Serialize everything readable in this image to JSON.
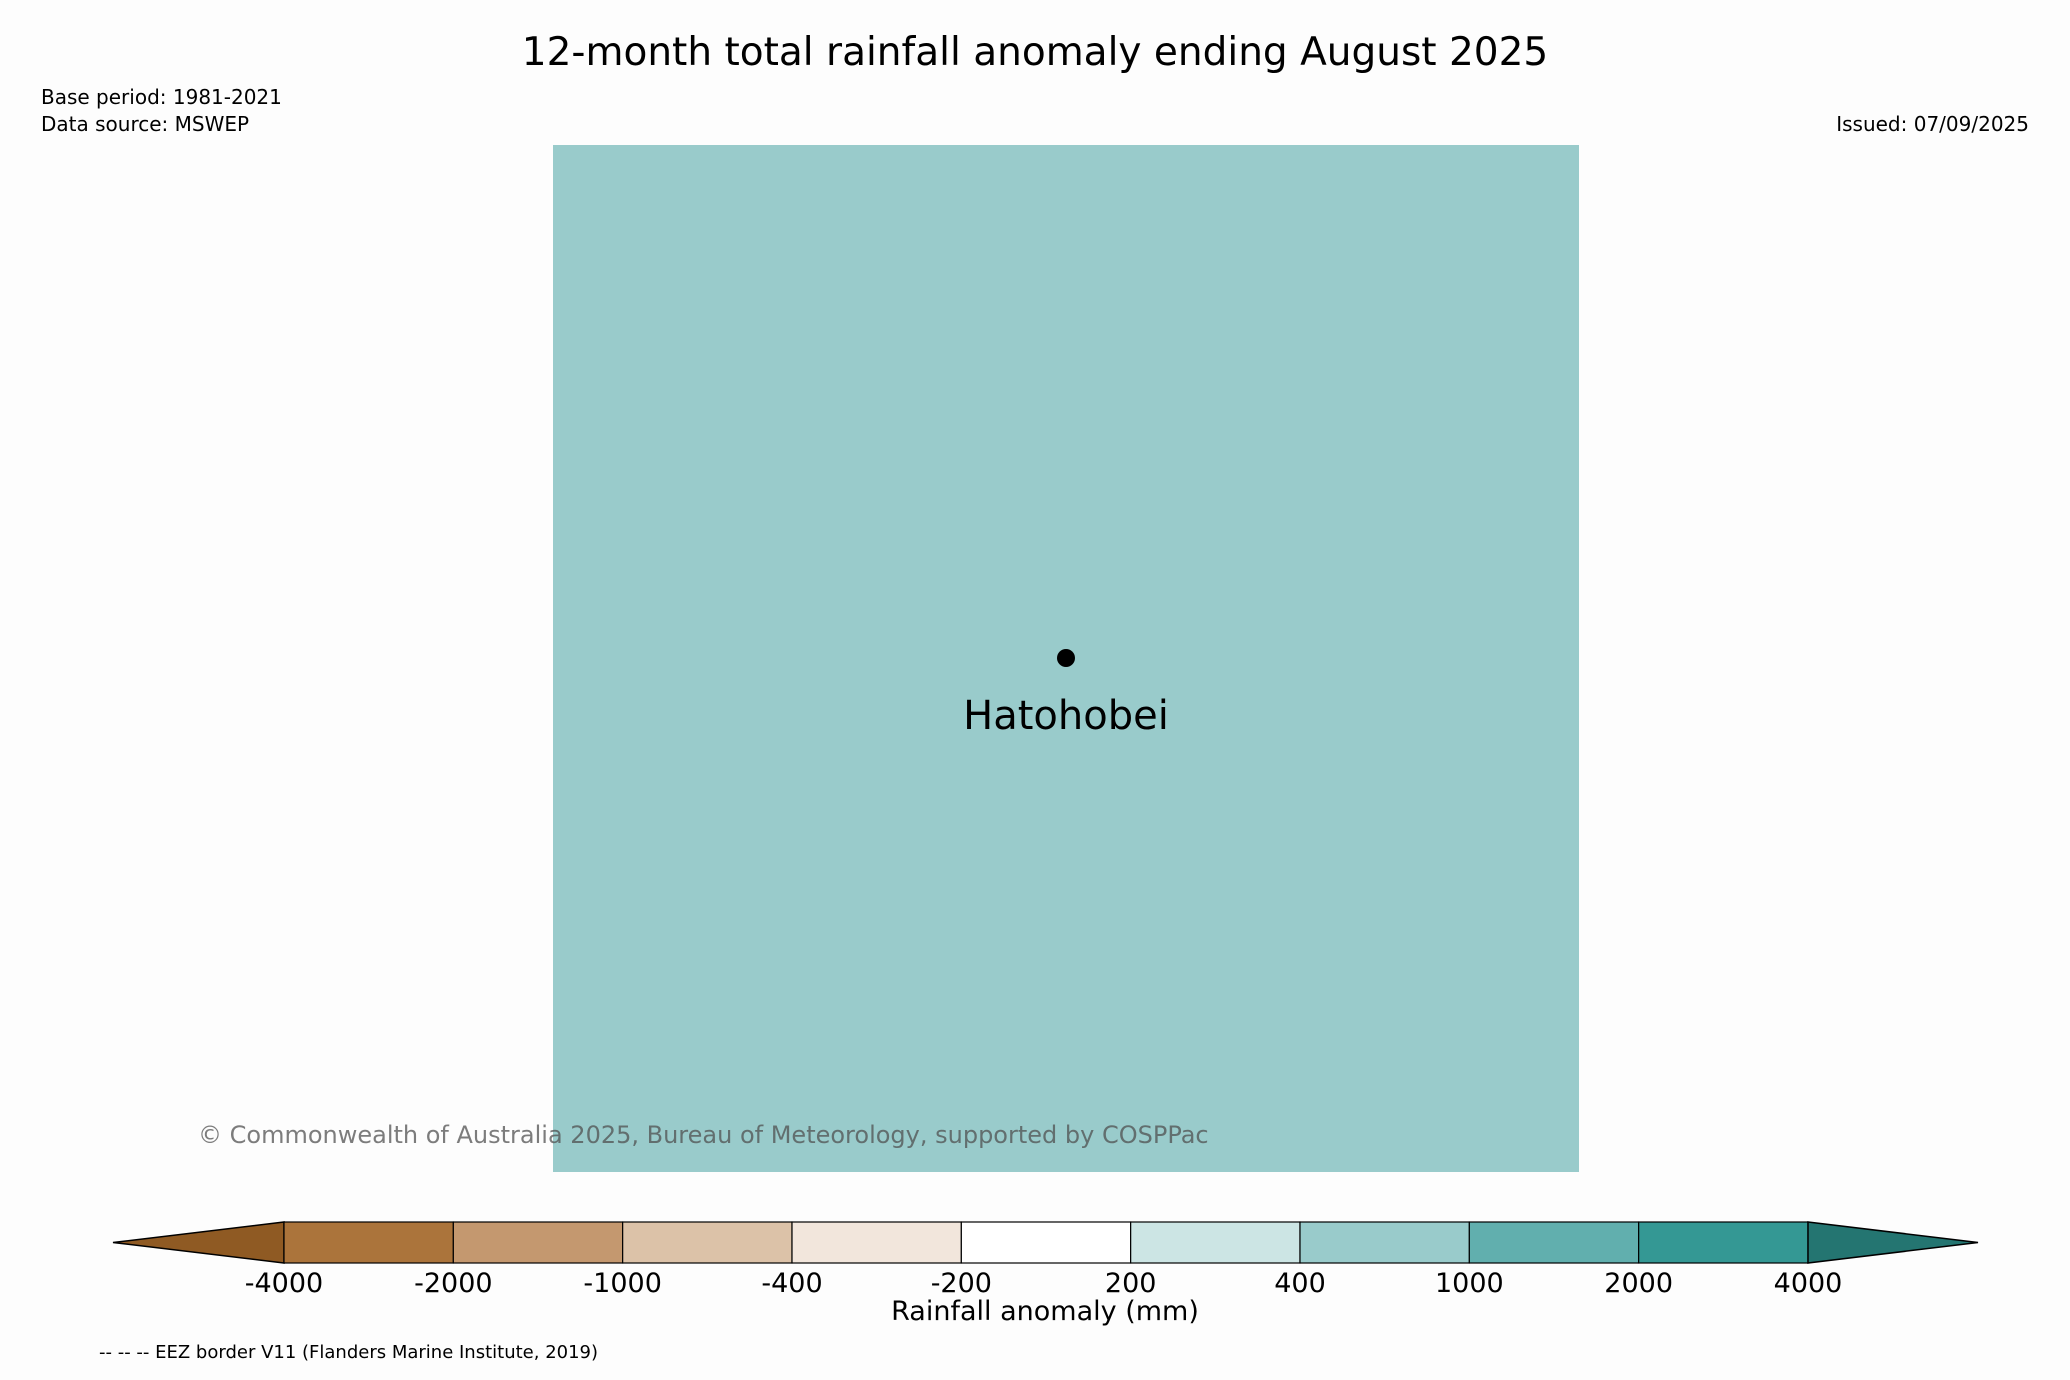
{
  "title": "12-month total rainfall anomaly ending August 2025",
  "base_period": "Base period: 1981-2021",
  "data_source": "Data source: MSWEP",
  "issued": "Issued: 07/09/2025",
  "map": {
    "fill_color": "#99cbcb",
    "location": {
      "name": "Hatohobei",
      "marker": "black-dot"
    }
  },
  "copyright": "© Commonwealth of Australia 2025, Bureau of Meteorology, supported by COSPPac",
  "colorbar": {
    "label": "Rainfall anomaly (mm)",
    "ticks": [
      "-4000",
      "-2000",
      "-1000",
      "-400",
      "-200",
      "200",
      "400",
      "1000",
      "2000",
      "4000"
    ],
    "colors": [
      "#8f5a23",
      "#ab743b",
      "#c4986f",
      "#dcc2a8",
      "#f2e6dc",
      "#ffffff",
      "#cce5e4",
      "#99cbcb",
      "#61afae",
      "#349894",
      "#247571"
    ]
  },
  "eez_note": "-- -- -- EEZ border V11 (Flanders Marine Institute, 2019)"
}
